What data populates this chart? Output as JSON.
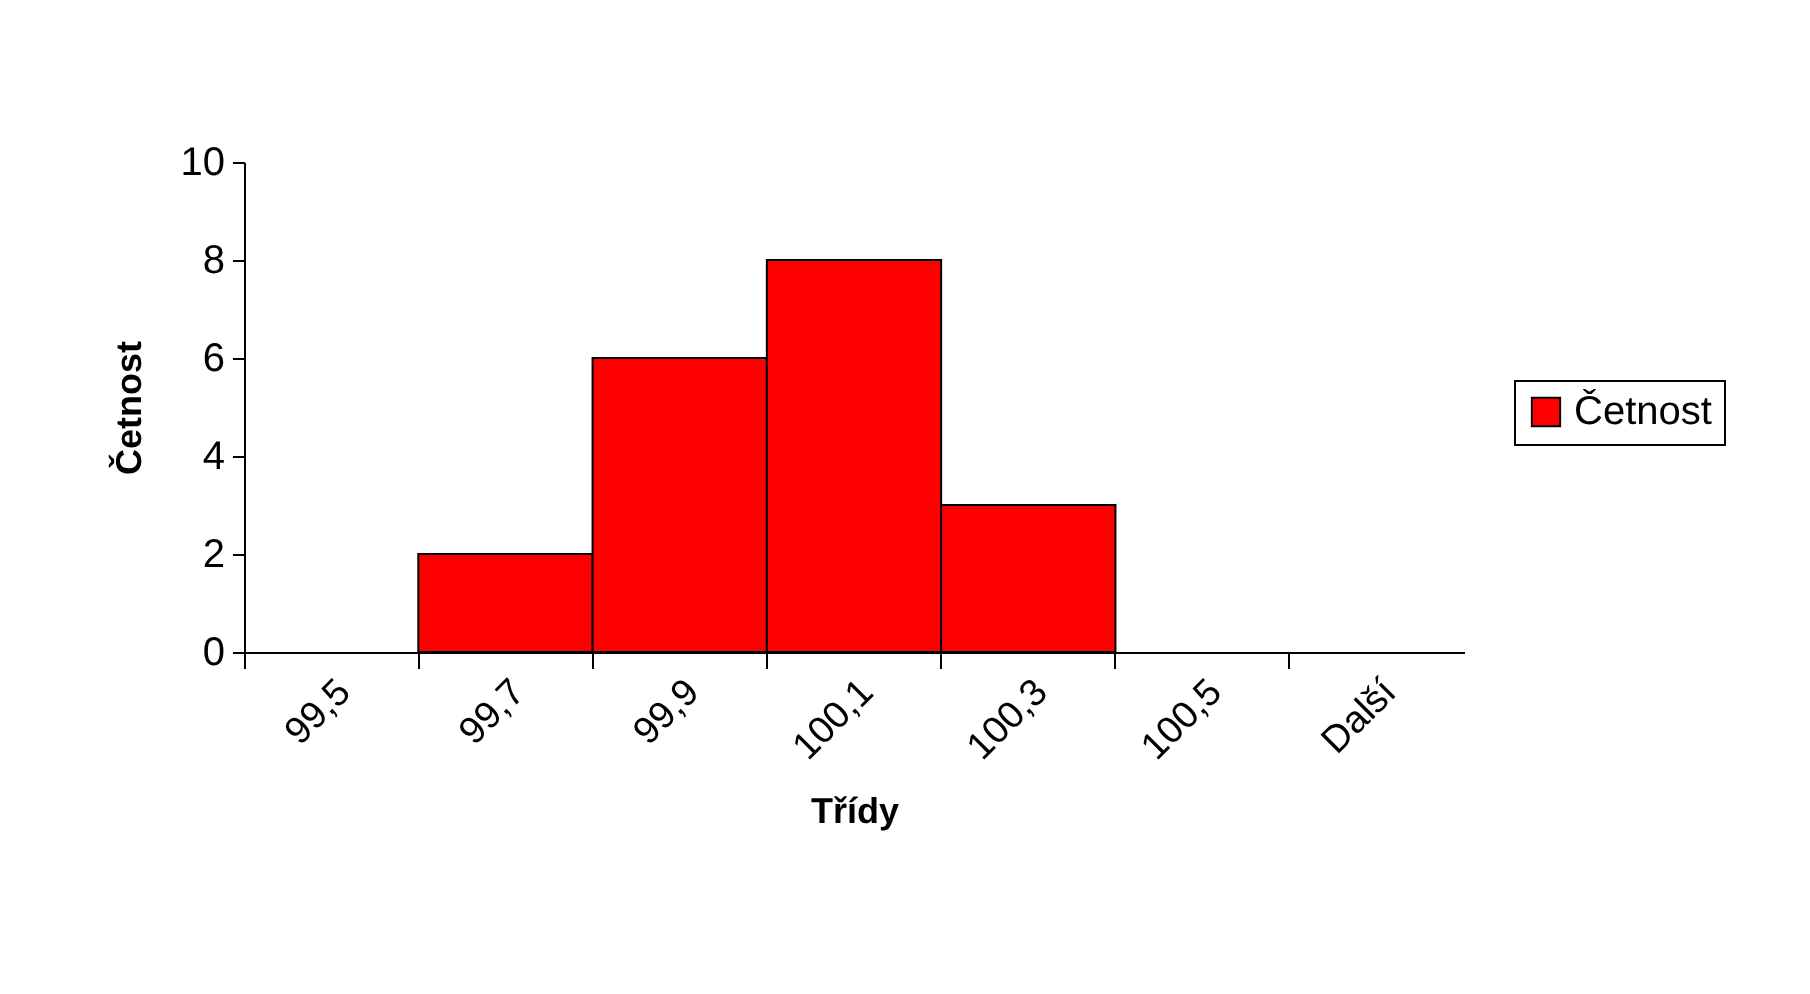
{
  "chart_data": {
    "type": "bar",
    "xlabel": "Třídy",
    "ylabel": "Četnost",
    "categories": [
      "99,5",
      "99,7",
      "99,9",
      "100,1",
      "100,3",
      "100,5",
      "Další"
    ],
    "series": [
      {
        "name": "Četnost",
        "color": "#ff0000",
        "values": [
          0,
          2,
          6,
          8,
          3,
          0,
          0
        ]
      }
    ],
    "ylim": [
      0,
      10
    ],
    "yticks": [
      0,
      2,
      4,
      6,
      8,
      10
    ],
    "legend": "right"
  }
}
